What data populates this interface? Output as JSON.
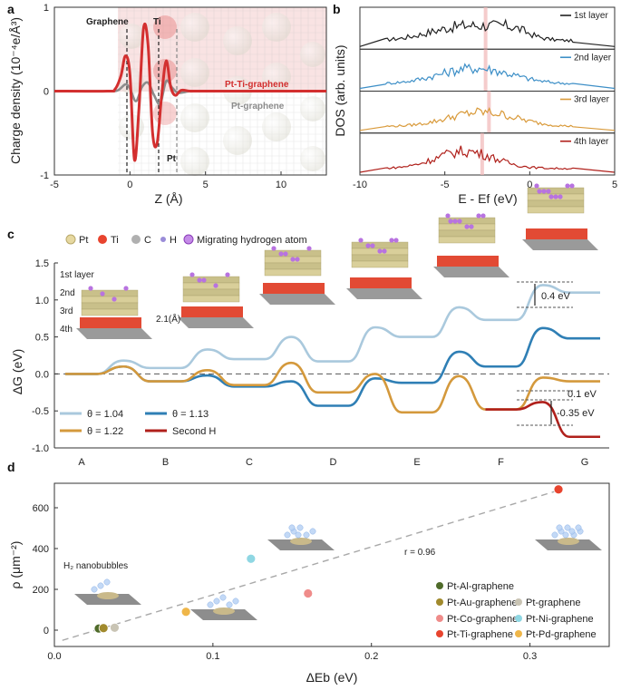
{
  "panels": {
    "a": "a",
    "b": "b",
    "c": "c",
    "d": "d"
  },
  "chart_data": [
    {
      "id": "a",
      "type": "line",
      "xlabel": "Z (Å)",
      "ylabel": "Charge density (10⁻⁴e/Å³)",
      "xlim": [
        -5,
        13
      ],
      "ylim": [
        -1,
        1
      ],
      "xticks": [
        -5,
        0,
        5,
        10
      ],
      "yticks": [
        -1,
        0,
        1
      ],
      "annotations": [
        "Graphene",
        "Ti",
        "Pt"
      ],
      "guide_lines": [
        -0.2,
        1.9,
        3.1
      ],
      "series": [
        {
          "name": "Pt-Ti-graphene",
          "color": "#d32f2f",
          "x": [
            -5,
            -1.5,
            -1.0,
            -0.6,
            -0.3,
            0.0,
            0.3,
            0.6,
            0.9,
            1.2,
            1.5,
            1.8,
            2.1,
            2.4,
            2.7,
            3.0,
            3.4,
            4.0,
            5,
            13
          ],
          "y": [
            0,
            0,
            0.02,
            0.18,
            0.42,
            0.2,
            -0.82,
            -0.2,
            0.75,
            0.55,
            -0.5,
            -0.62,
            -0.05,
            0.36,
            0.05,
            -0.05,
            0.01,
            0,
            0,
            0
          ]
        },
        {
          "name": "Pt-graphene",
          "color": "#8c8c8c",
          "x": [
            -5,
            -1.5,
            -0.8,
            -0.3,
            0.0,
            0.4,
            0.8,
            1.2,
            1.6,
            2.0,
            2.4,
            2.8,
            3.2,
            4.0,
            5,
            13
          ],
          "y": [
            0,
            0,
            0.01,
            0.08,
            0.03,
            -0.12,
            0.05,
            0.1,
            -0.05,
            -0.15,
            0.12,
            0.04,
            -0.02,
            0,
            0,
            0
          ]
        }
      ]
    },
    {
      "id": "b",
      "type": "line",
      "xlabel": "E - Ef (eV)",
      "ylabel": "DOS (arb. units)",
      "xlim": [
        -10,
        5
      ],
      "xticks": [
        -10,
        -5,
        0,
        5
      ],
      "layers": [
        {
          "name": "1st layer",
          "color": "#222222",
          "marker": -2.6
        },
        {
          "name": "2nd layer",
          "color": "#3d8fc7",
          "marker": -2.6
        },
        {
          "name": "3rd layer",
          "color": "#d99a3a",
          "marker": -2.4
        },
        {
          "name": "4th layer",
          "color": "#b0201b",
          "marker": -2.8
        }
      ]
    },
    {
      "id": "c",
      "type": "line",
      "ylabel": "ΔG (eV)",
      "ylim": [
        -1.0,
        1.5
      ],
      "yticks": [
        -1.0,
        -0.5,
        0.0,
        0.5,
        1.0,
        1.5
      ],
      "categories": [
        "A",
        "B",
        "C",
        "D",
        "E",
        "F",
        "G"
      ],
      "series": [
        {
          "name": "θ = 1.04",
          "color": "#aac9dd",
          "values": [
            0,
            0.08,
            0.2,
            0.17,
            0.5,
            0.73,
            1.1
          ],
          "barriers": [
            0.18,
            0.33,
            0.5,
            0.63,
            0.9,
            1.2
          ]
        },
        {
          "name": "θ = 1.13",
          "color": "#2f7fb5",
          "values": [
            0,
            -0.1,
            -0.17,
            -0.43,
            -0.12,
            0.1,
            0.48
          ],
          "barriers": [
            0.1,
            -0.02,
            -0.1,
            -0.06,
            0.3,
            0.62
          ]
        },
        {
          "name": "θ = 1.22",
          "color": "#d4993c",
          "values": [
            0,
            -0.1,
            -0.15,
            -0.25,
            -0.52,
            -0.48,
            -0.1
          ],
          "barriers": [
            0.1,
            0.05,
            0.15,
            0.0,
            -0.03,
            -0.05
          ]
        },
        {
          "name": "Second H",
          "color": "#b0201b",
          "from": "F",
          "values_at": {
            "F": -0.48,
            "G": -0.85
          },
          "barrier": -0.38
        }
      ],
      "annotations": [
        "0.4 eV",
        "0.1 eV",
        "-0.35 eV"
      ],
      "legend": [
        "Pt",
        "Ti",
        "C",
        "H",
        "Migrating hydrogen atom"
      ],
      "labels": {
        "l1": "1st layer",
        "l2": "2nd",
        "l3": "3rd",
        "l4": "4th",
        "dist": "2.1(Å)"
      }
    },
    {
      "id": "d",
      "type": "scatter",
      "xlabel": "ΔEb (eV)",
      "ylabel": "ρ (μm⁻²)",
      "xlim": [
        0.0,
        0.35
      ],
      "ylim": [
        -80,
        720
      ],
      "xticks": [
        0.0,
        0.1,
        0.2,
        0.3
      ],
      "yticks": [
        0,
        200,
        400,
        600
      ],
      "fit_label": "r = 0.96",
      "fit": {
        "x": [
          0.005,
          0.32
        ],
        "y": [
          -50,
          690
        ]
      },
      "inset_label": "H₂ nanobubbles",
      "points": [
        {
          "name": "Pt-Al-graphene",
          "x": 0.028,
          "y": 8,
          "color": "#4f6b2a"
        },
        {
          "name": "Pt-Au-graphene",
          "x": 0.031,
          "y": 10,
          "color": "#a18a2d"
        },
        {
          "name": "Pt-Co-graphene",
          "x": 0.16,
          "y": 180,
          "color": "#ef8c8a"
        },
        {
          "name": "Pt-Ti-graphene",
          "x": 0.318,
          "y": 690,
          "color": "#e8442e"
        },
        {
          "name": "Pt-graphene",
          "x": 0.038,
          "y": 12,
          "color": "#c9c4b4"
        },
        {
          "name": "Pt-Ni-graphene",
          "x": 0.124,
          "y": 350,
          "color": "#8fd7e3"
        },
        {
          "name": "Pt-Pd-graphene",
          "x": 0.083,
          "y": 90,
          "color": "#efb649"
        }
      ]
    }
  ]
}
